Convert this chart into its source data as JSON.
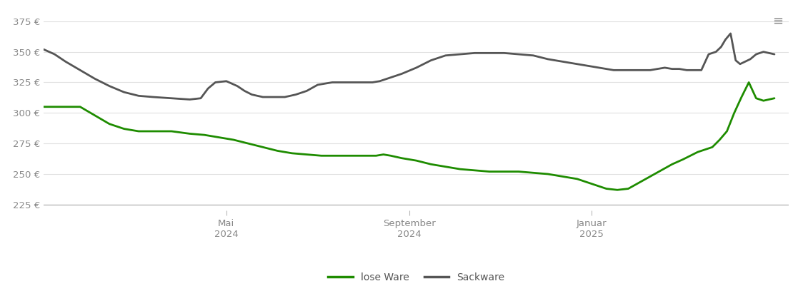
{
  "ylim": [
    220,
    385
  ],
  "yticks": [
    225,
    250,
    275,
    300,
    325,
    350,
    375
  ],
  "ytick_labels": [
    "225 €",
    "250 €",
    "275 €",
    "300 €",
    "325 €",
    "350 €",
    "375 €"
  ],
  "xtick_positions": [
    0.25,
    0.5,
    0.75
  ],
  "xtick_labels_line1": [
    "Mai",
    "September",
    "Januar"
  ],
  "xtick_labels_line2": [
    "2024",
    "2024",
    "2025"
  ],
  "background_color": "#ffffff",
  "grid_color": "#e0e0e0",
  "lose_ware_color": "#1e8c00",
  "sackware_color": "#555555",
  "legend_labels": [
    "lose Ware",
    "Sackware"
  ],
  "lose_ware_x": [
    0.0,
    0.015,
    0.03,
    0.05,
    0.07,
    0.09,
    0.11,
    0.13,
    0.15,
    0.175,
    0.2,
    0.22,
    0.24,
    0.26,
    0.28,
    0.3,
    0.32,
    0.34,
    0.36,
    0.38,
    0.4,
    0.42,
    0.44,
    0.455,
    0.465,
    0.475,
    0.49,
    0.51,
    0.53,
    0.55,
    0.57,
    0.59,
    0.61,
    0.63,
    0.65,
    0.67,
    0.69,
    0.71,
    0.73,
    0.75,
    0.76,
    0.77,
    0.785,
    0.8,
    0.815,
    0.83,
    0.845,
    0.86,
    0.875,
    0.885,
    0.895,
    0.905,
    0.915,
    0.925,
    0.935,
    0.945,
    0.955,
    0.965,
    0.975,
    0.985,
    1.0
  ],
  "lose_ware_y": [
    305,
    305,
    305,
    305,
    298,
    291,
    287,
    285,
    285,
    285,
    283,
    282,
    280,
    278,
    275,
    272,
    269,
    267,
    266,
    265,
    265,
    265,
    265,
    265,
    266,
    265,
    263,
    261,
    258,
    256,
    254,
    253,
    252,
    252,
    252,
    251,
    250,
    248,
    246,
    242,
    240,
    238,
    237,
    238,
    243,
    248,
    253,
    258,
    262,
    265,
    268,
    270,
    272,
    278,
    285,
    300,
    313,
    325,
    312,
    310,
    312
  ],
  "sackware_x": [
    0.0,
    0.015,
    0.03,
    0.05,
    0.07,
    0.09,
    0.11,
    0.13,
    0.15,
    0.175,
    0.2,
    0.215,
    0.225,
    0.235,
    0.25,
    0.265,
    0.275,
    0.285,
    0.3,
    0.315,
    0.33,
    0.345,
    0.36,
    0.375,
    0.395,
    0.415,
    0.435,
    0.45,
    0.46,
    0.47,
    0.49,
    0.51,
    0.53,
    0.55,
    0.57,
    0.59,
    0.61,
    0.63,
    0.65,
    0.67,
    0.69,
    0.71,
    0.73,
    0.75,
    0.76,
    0.77,
    0.78,
    0.79,
    0.8,
    0.81,
    0.82,
    0.83,
    0.84,
    0.85,
    0.86,
    0.87,
    0.88,
    0.89,
    0.9,
    0.91,
    0.92,
    0.927,
    0.933,
    0.94,
    0.947,
    0.953,
    0.96,
    0.967,
    0.975,
    0.985,
    1.0
  ],
  "sackware_y": [
    352,
    348,
    342,
    335,
    328,
    322,
    317,
    314,
    313,
    312,
    311,
    312,
    320,
    325,
    326,
    322,
    318,
    315,
    313,
    313,
    313,
    315,
    318,
    323,
    325,
    325,
    325,
    325,
    326,
    328,
    332,
    337,
    343,
    347,
    348,
    349,
    349,
    349,
    348,
    347,
    344,
    342,
    340,
    338,
    337,
    336,
    335,
    335,
    335,
    335,
    335,
    335,
    336,
    337,
    336,
    336,
    335,
    335,
    335,
    348,
    350,
    354,
    360,
    365,
    343,
    340,
    342,
    344,
    348,
    350,
    348
  ]
}
